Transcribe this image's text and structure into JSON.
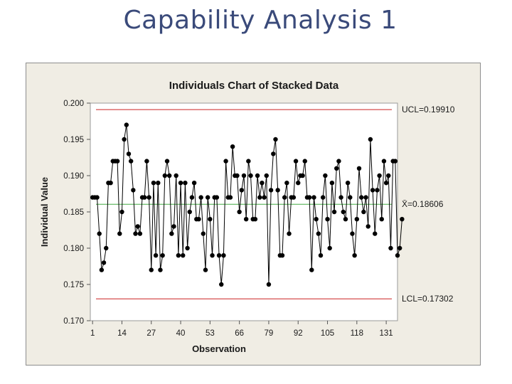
{
  "slide": {
    "title": "Capability Analysis 1"
  },
  "colors": {
    "background": "#f0ede4",
    "limit_line": "#cc2222",
    "center_line": "#44aa44",
    "series": "#000000"
  },
  "chart_data": {
    "type": "line",
    "title": "Individuals Chart of Stacked Data",
    "xlabel": "Observation",
    "ylabel": "Individual Value",
    "xlim": [
      0,
      136
    ],
    "ylim": [
      0.17,
      0.2
    ],
    "xticks": [
      1,
      14,
      27,
      40,
      53,
      66,
      79,
      92,
      105,
      118,
      131
    ],
    "yticks": [
      "0.170",
      "0.175",
      "0.180",
      "0.185",
      "0.190",
      "0.195",
      "0.200"
    ],
    "reference_lines": [
      {
        "name": "UCL",
        "label": "UCL=0.19910",
        "value": 0.1991
      },
      {
        "name": "center",
        "label": "X̄=0.18606",
        "value": 0.18606
      },
      {
        "name": "LCL",
        "label": "LCL=0.17302",
        "value": 0.17302
      }
    ],
    "series": [
      {
        "name": "Stacked Data",
        "values": [
          0.187,
          0.187,
          0.187,
          0.182,
          0.177,
          0.178,
          0.18,
          0.189,
          0.189,
          0.192,
          0.192,
          0.192,
          0.182,
          0.185,
          0.195,
          0.197,
          0.193,
          0.192,
          0.188,
          0.182,
          0.183,
          0.182,
          0.187,
          0.187,
          0.192,
          0.187,
          0.177,
          0.189,
          0.179,
          0.189,
          0.177,
          0.179,
          0.19,
          0.192,
          0.19,
          0.182,
          0.183,
          0.19,
          0.179,
          0.189,
          0.179,
          0.189,
          0.18,
          0.185,
          0.187,
          0.189,
          0.184,
          0.184,
          0.187,
          0.182,
          0.177,
          0.187,
          0.184,
          0.179,
          0.187,
          0.187,
          0.179,
          0.175,
          0.179,
          0.192,
          0.187,
          0.187,
          0.194,
          0.19,
          0.19,
          0.185,
          0.188,
          0.19,
          0.184,
          0.192,
          0.19,
          0.184,
          0.184,
          0.19,
          0.187,
          0.189,
          0.187,
          0.19,
          0.175,
          0.188,
          0.193,
          0.195,
          0.188,
          0.179,
          0.179,
          0.187,
          0.189,
          0.182,
          0.187,
          0.187,
          0.192,
          0.189,
          0.19,
          0.19,
          0.192,
          0.187,
          0.187,
          0.177,
          0.187,
          0.184,
          0.182,
          0.179,
          0.187,
          0.19,
          0.184,
          0.18,
          0.189,
          0.185,
          0.191,
          0.192,
          0.187,
          0.185,
          0.184,
          0.189,
          0.187,
          0.182,
          0.179,
          0.184,
          0.191,
          0.187,
          0.185,
          0.187,
          0.183,
          0.195,
          0.188,
          0.182,
          0.188,
          0.19,
          0.184,
          0.192,
          0.189,
          0.19,
          0.18,
          0.192,
          0.192,
          0.179,
          0.18,
          0.184
        ]
      }
    ]
  }
}
